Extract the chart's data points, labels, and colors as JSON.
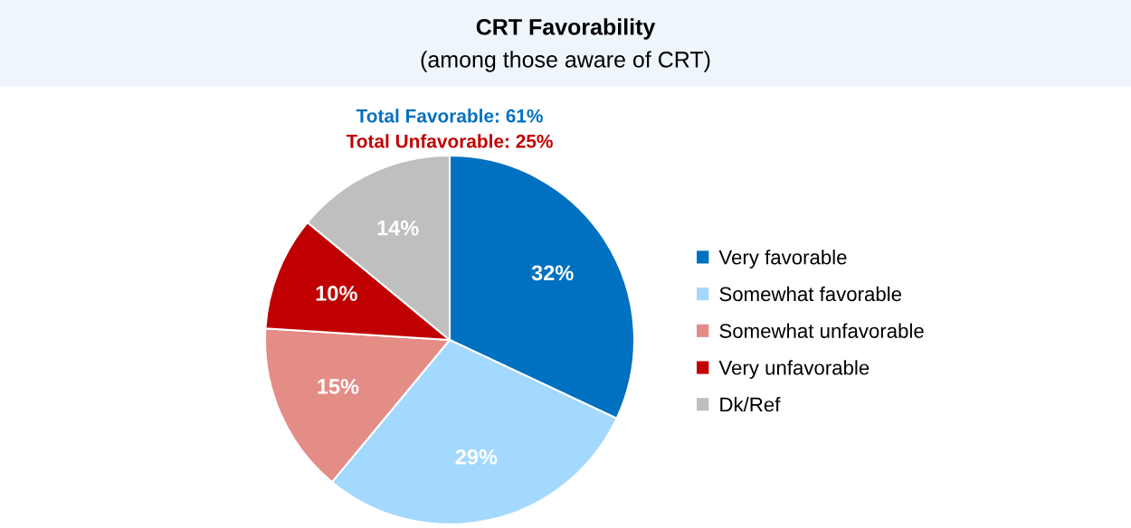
{
  "chart_data": {
    "type": "pie",
    "title": "CRT Favorability",
    "subtitle": "(among those aware of CRT)",
    "annotations": [
      "Total Favorable: 61%",
      "Total Unfavorable: 25%"
    ],
    "categories": [
      "Very favorable",
      "Somewhat favorable",
      "Somewhat unfavorable",
      "Very unfavorable",
      "Dk/Ref"
    ],
    "values": [
      32,
      29,
      15,
      10,
      14
    ],
    "value_labels": [
      "32%",
      "29%",
      "15%",
      "10%",
      "14%"
    ],
    "colors": [
      "#0070c0",
      "#a3d8ff",
      "#e48c86",
      "#c00000",
      "#bfbfbf"
    ],
    "legend": "right"
  }
}
